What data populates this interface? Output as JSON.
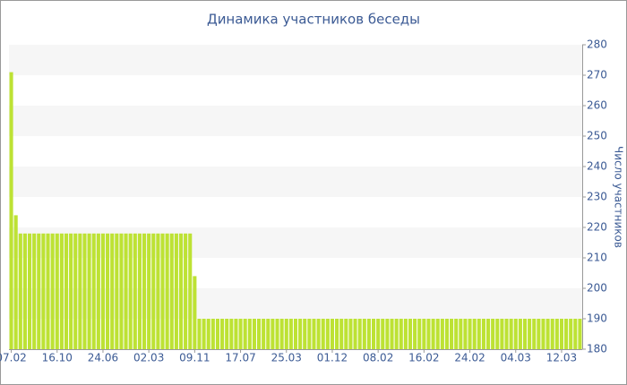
{
  "chart_data": {
    "type": "bar",
    "title": "Динамика участников беседы",
    "y_label": "Число участников",
    "categories": [
      "07.02",
      null,
      null,
      null,
      null,
      null,
      null,
      null,
      null,
      null,
      "16.10",
      null,
      null,
      null,
      null,
      null,
      null,
      null,
      null,
      null,
      "24.06",
      null,
      null,
      null,
      null,
      null,
      null,
      null,
      null,
      null,
      "02.03",
      null,
      null,
      null,
      null,
      null,
      null,
      null,
      null,
      null,
      "09.11",
      null,
      null,
      null,
      null,
      null,
      null,
      null,
      null,
      null,
      "17.07",
      null,
      null,
      null,
      null,
      null,
      null,
      null,
      null,
      null,
      "25.03",
      null,
      null,
      null,
      null,
      null,
      null,
      null,
      null,
      null,
      "01.12",
      null,
      null,
      null,
      null,
      null,
      null,
      null,
      null,
      null,
      "08.02",
      null,
      null,
      null,
      null,
      null,
      null,
      null,
      null,
      null,
      "16.02",
      null,
      null,
      null,
      null,
      null,
      null,
      null,
      null,
      null,
      "24.02",
      null,
      null,
      null,
      null,
      null,
      null,
      null,
      null,
      null,
      "04.03",
      null,
      null,
      null,
      null,
      null,
      null,
      null,
      null,
      null,
      "12.03",
      null,
      null,
      null,
      null
    ],
    "values": [
      271,
      224,
      218,
      218,
      218,
      218,
      218,
      218,
      218,
      218,
      218,
      218,
      218,
      218,
      218,
      218,
      218,
      218,
      218,
      218,
      218,
      218,
      218,
      218,
      218,
      218,
      218,
      218,
      218,
      218,
      218,
      218,
      218,
      218,
      218,
      218,
      218,
      218,
      218,
      218,
      204,
      190,
      190,
      190,
      190,
      190,
      190,
      190,
      190,
      190,
      190,
      190,
      190,
      190,
      190,
      190,
      190,
      190,
      190,
      190,
      190,
      190,
      190,
      190,
      190,
      190,
      190,
      190,
      190,
      190,
      190,
      190,
      190,
      190,
      190,
      190,
      190,
      190,
      190,
      190,
      190,
      190,
      190,
      190,
      190,
      190,
      190,
      190,
      190,
      190,
      190,
      190,
      190,
      190,
      190,
      190,
      190,
      190,
      190,
      190,
      190,
      190,
      190,
      190,
      190,
      190,
      190,
      190,
      190,
      190,
      190,
      190,
      190,
      190,
      190,
      190,
      190,
      190,
      190,
      190,
      190,
      190,
      190,
      190,
      190
    ],
    "color": "#bde234",
    "ylim": [
      180,
      280
    ],
    "yticks": [
      180,
      190,
      200,
      210,
      220,
      230,
      240,
      250,
      260,
      270,
      280
    ],
    "grid": true
  }
}
